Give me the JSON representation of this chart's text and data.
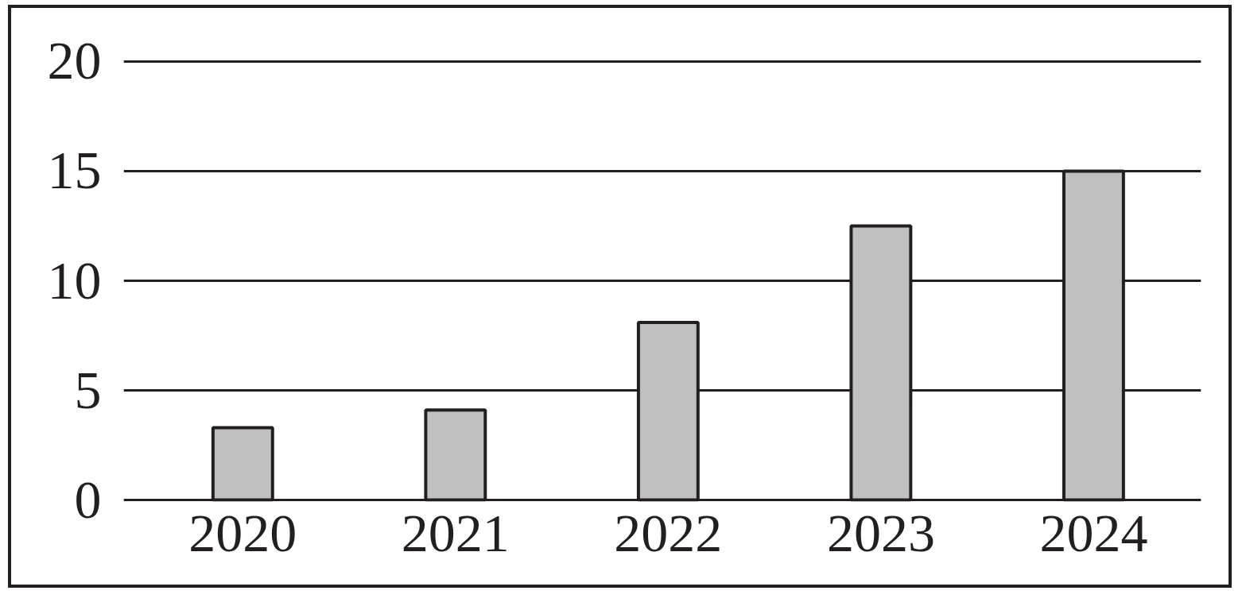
{
  "chart_data": {
    "type": "bar",
    "categories": [
      "2020",
      "2021",
      "2022",
      "2023",
      "2024"
    ],
    "values": [
      3.3,
      4.1,
      8.1,
      12.5,
      15
    ],
    "color": "#c0c0c0",
    "ylim": [
      0,
      20
    ],
    "yticks": [
      0,
      5,
      10,
      15,
      20
    ],
    "grid": "y"
  }
}
